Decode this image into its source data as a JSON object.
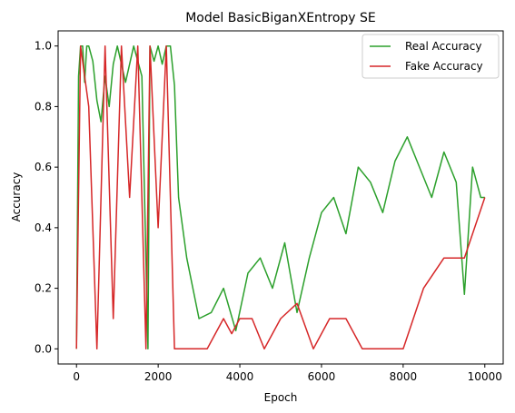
{
  "chart_data": {
    "type": "line",
    "title": "Model BasicBiganXEntropy SE",
    "xlabel": "Epoch",
    "ylabel": "Accuracy",
    "xlim": [
      -450,
      10450
    ],
    "ylim": [
      -0.05,
      1.05
    ],
    "xticks": [
      0,
      2000,
      4000,
      6000,
      8000,
      10000
    ],
    "xtick_labels": [
      "0",
      "2000",
      "4000",
      "6000",
      "8000",
      "10000"
    ],
    "yticks": [
      0.0,
      0.2,
      0.4,
      0.6,
      0.8,
      1.0
    ],
    "ytick_labels": [
      "0.0",
      "0.2",
      "0.4",
      "0.6",
      "0.8",
      "1.0"
    ],
    "grid": false,
    "legend_position": "top-right",
    "series": [
      {
        "name": "Real Accuracy",
        "color": "#2ca02c",
        "x": [
          0,
          50,
          100,
          150,
          200,
          250,
          300,
          400,
          500,
          600,
          700,
          800,
          900,
          1000,
          1200,
          1400,
          1600,
          1750,
          1800,
          1900,
          2000,
          2100,
          2200,
          2300,
          2400,
          2500,
          2700,
          3000,
          3300,
          3600,
          3900,
          4200,
          4500,
          4800,
          5100,
          5400,
          5700,
          6000,
          6300,
          6600,
          6900,
          7200,
          7500,
          7800,
          8100,
          8400,
          8700,
          9000,
          9300,
          9500,
          9700,
          9900,
          10000
        ],
        "values": [
          0.0,
          0.9,
          1.0,
          1.0,
          0.88,
          1.0,
          1.0,
          0.95,
          0.82,
          0.75,
          0.9,
          0.8,
          0.94,
          1.0,
          0.88,
          1.0,
          0.9,
          0.0,
          1.0,
          0.95,
          1.0,
          0.94,
          1.0,
          1.0,
          0.87,
          0.5,
          0.3,
          0.1,
          0.12,
          0.2,
          0.06,
          0.25,
          0.3,
          0.2,
          0.35,
          0.12,
          0.3,
          0.45,
          0.5,
          0.38,
          0.6,
          0.55,
          0.45,
          0.62,
          0.7,
          0.6,
          0.5,
          0.65,
          0.55,
          0.18,
          0.6,
          0.5,
          0.5
        ]
      },
      {
        "name": "Fake Accuracy",
        "color": "#d62728",
        "x": [
          0,
          100,
          300,
          500,
          700,
          900,
          1100,
          1300,
          1500,
          1700,
          1800,
          2000,
          2200,
          2400,
          2600,
          2800,
          3000,
          3200,
          3400,
          3600,
          3800,
          4000,
          4300,
          4600,
          5000,
          5400,
          5800,
          6200,
          6600,
          7000,
          7500,
          8000,
          8500,
          9000,
          9500,
          10000
        ],
        "values": [
          0.0,
          1.0,
          0.8,
          0.0,
          1.0,
          0.1,
          1.0,
          0.5,
          1.0,
          0.0,
          1.0,
          0.4,
          1.0,
          0.0,
          0.0,
          0.0,
          0.0,
          0.0,
          0.05,
          0.1,
          0.05,
          0.1,
          0.1,
          0.0,
          0.1,
          0.15,
          0.0,
          0.1,
          0.1,
          0.0,
          0.0,
          0.0,
          0.2,
          0.3,
          0.3,
          0.5
        ]
      }
    ]
  }
}
